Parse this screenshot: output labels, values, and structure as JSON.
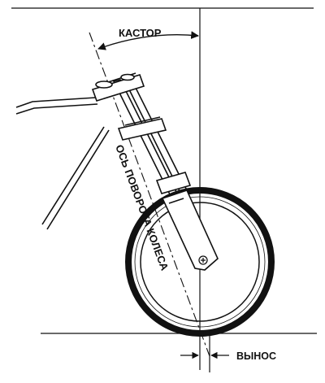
{
  "diagram": {
    "labels": {
      "caster": "КАСТОР",
      "steering_axis": "ОСЬ ПОВОРОТА КОЛЕСА",
      "trail": "ВЫНОС"
    },
    "colors": {
      "line": "#111111",
      "background": "#ffffff"
    }
  }
}
